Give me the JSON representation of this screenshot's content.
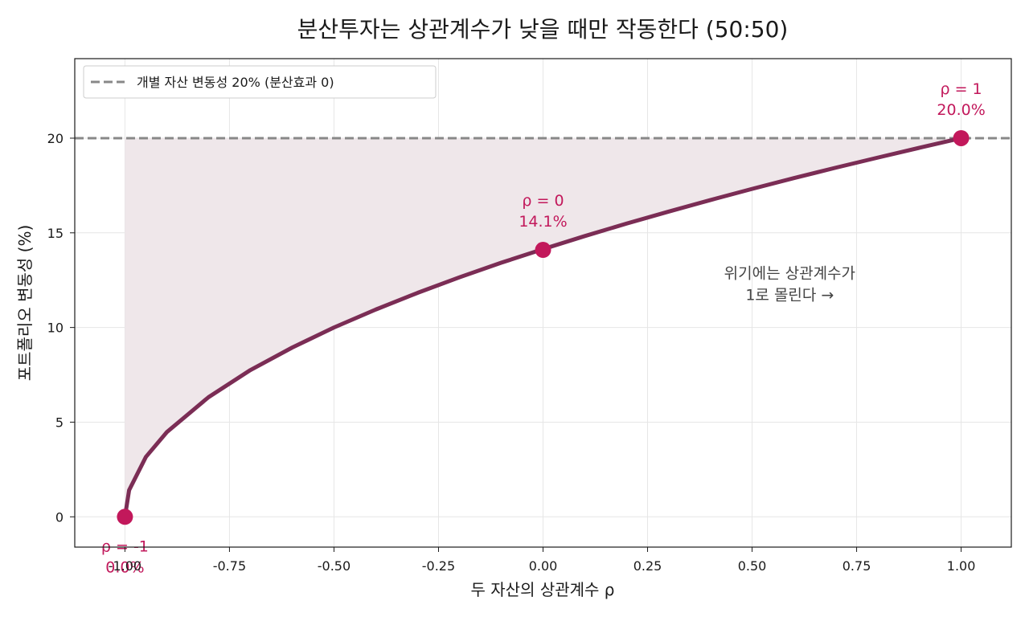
{
  "chart_data": {
    "type": "line",
    "title": "분산투자는 상관계수가 낮을 때만 작동한다 (50:50)",
    "xlabel": "두 자산의 상관계수 ρ",
    "ylabel": "포트폴리오 변동성 (%)",
    "xlim": [
      -1.12,
      1.12
    ],
    "ylim": [
      -1.6,
      24.2
    ],
    "x_ticks": [
      -1.0,
      -0.75,
      -0.5,
      -0.25,
      0.0,
      0.25,
      0.5,
      0.75,
      1.0
    ],
    "x_tick_labels": [
      "-1.00",
      "-0.75",
      "-0.50",
      "-0.25",
      "0.00",
      "0.25",
      "0.50",
      "0.75",
      "1.00"
    ],
    "y_ticks": [
      0,
      5,
      10,
      15,
      20
    ],
    "y_tick_labels": [
      "0",
      "5",
      "10",
      "15",
      "20"
    ],
    "grid": true,
    "legend_position": "top-left",
    "series": [
      {
        "name": "",
        "x": [
          -1.0,
          -0.99,
          -0.95,
          -0.9,
          -0.8,
          -0.7,
          -0.6,
          -0.5,
          -0.4,
          -0.3,
          -0.2,
          -0.1,
          0.0,
          0.1,
          0.2,
          0.3,
          0.4,
          0.5,
          0.6,
          0.7,
          0.8,
          0.9,
          1.0
        ],
        "y": [
          0.0,
          1.41,
          3.16,
          4.47,
          6.32,
          7.75,
          8.94,
          10.0,
          10.95,
          11.83,
          12.65,
          13.42,
          14.14,
          14.83,
          15.49,
          16.12,
          16.73,
          17.32,
          17.89,
          18.44,
          18.97,
          19.49,
          20.0
        ],
        "color": "#7b2d55"
      }
    ],
    "reference_line": {
      "name": "개별 자산 변동성 20% (분산효과 0)",
      "y": 20,
      "color": "#888888",
      "style": "dashed"
    },
    "highlight_points": [
      {
        "x": -1.0,
        "y": 0.0,
        "label_rho": "ρ  = -1",
        "label_value": "0.0%"
      },
      {
        "x": 0.0,
        "y": 14.1,
        "label_rho": "ρ  = 0",
        "label_value": "14.1%"
      },
      {
        "x": 1.0,
        "y": 20.0,
        "label_rho": "ρ  = 1",
        "label_value": "20.0%"
      }
    ],
    "annotation": {
      "x": 0.59,
      "y": 12.6,
      "lines": [
        "위기에는 상관계수가",
        "1로 몰린다 →"
      ]
    },
    "colors": {
      "line": "#7b2d55",
      "fill": "#efe7ea",
      "point": "#c2185b",
      "reference": "#888888"
    }
  }
}
